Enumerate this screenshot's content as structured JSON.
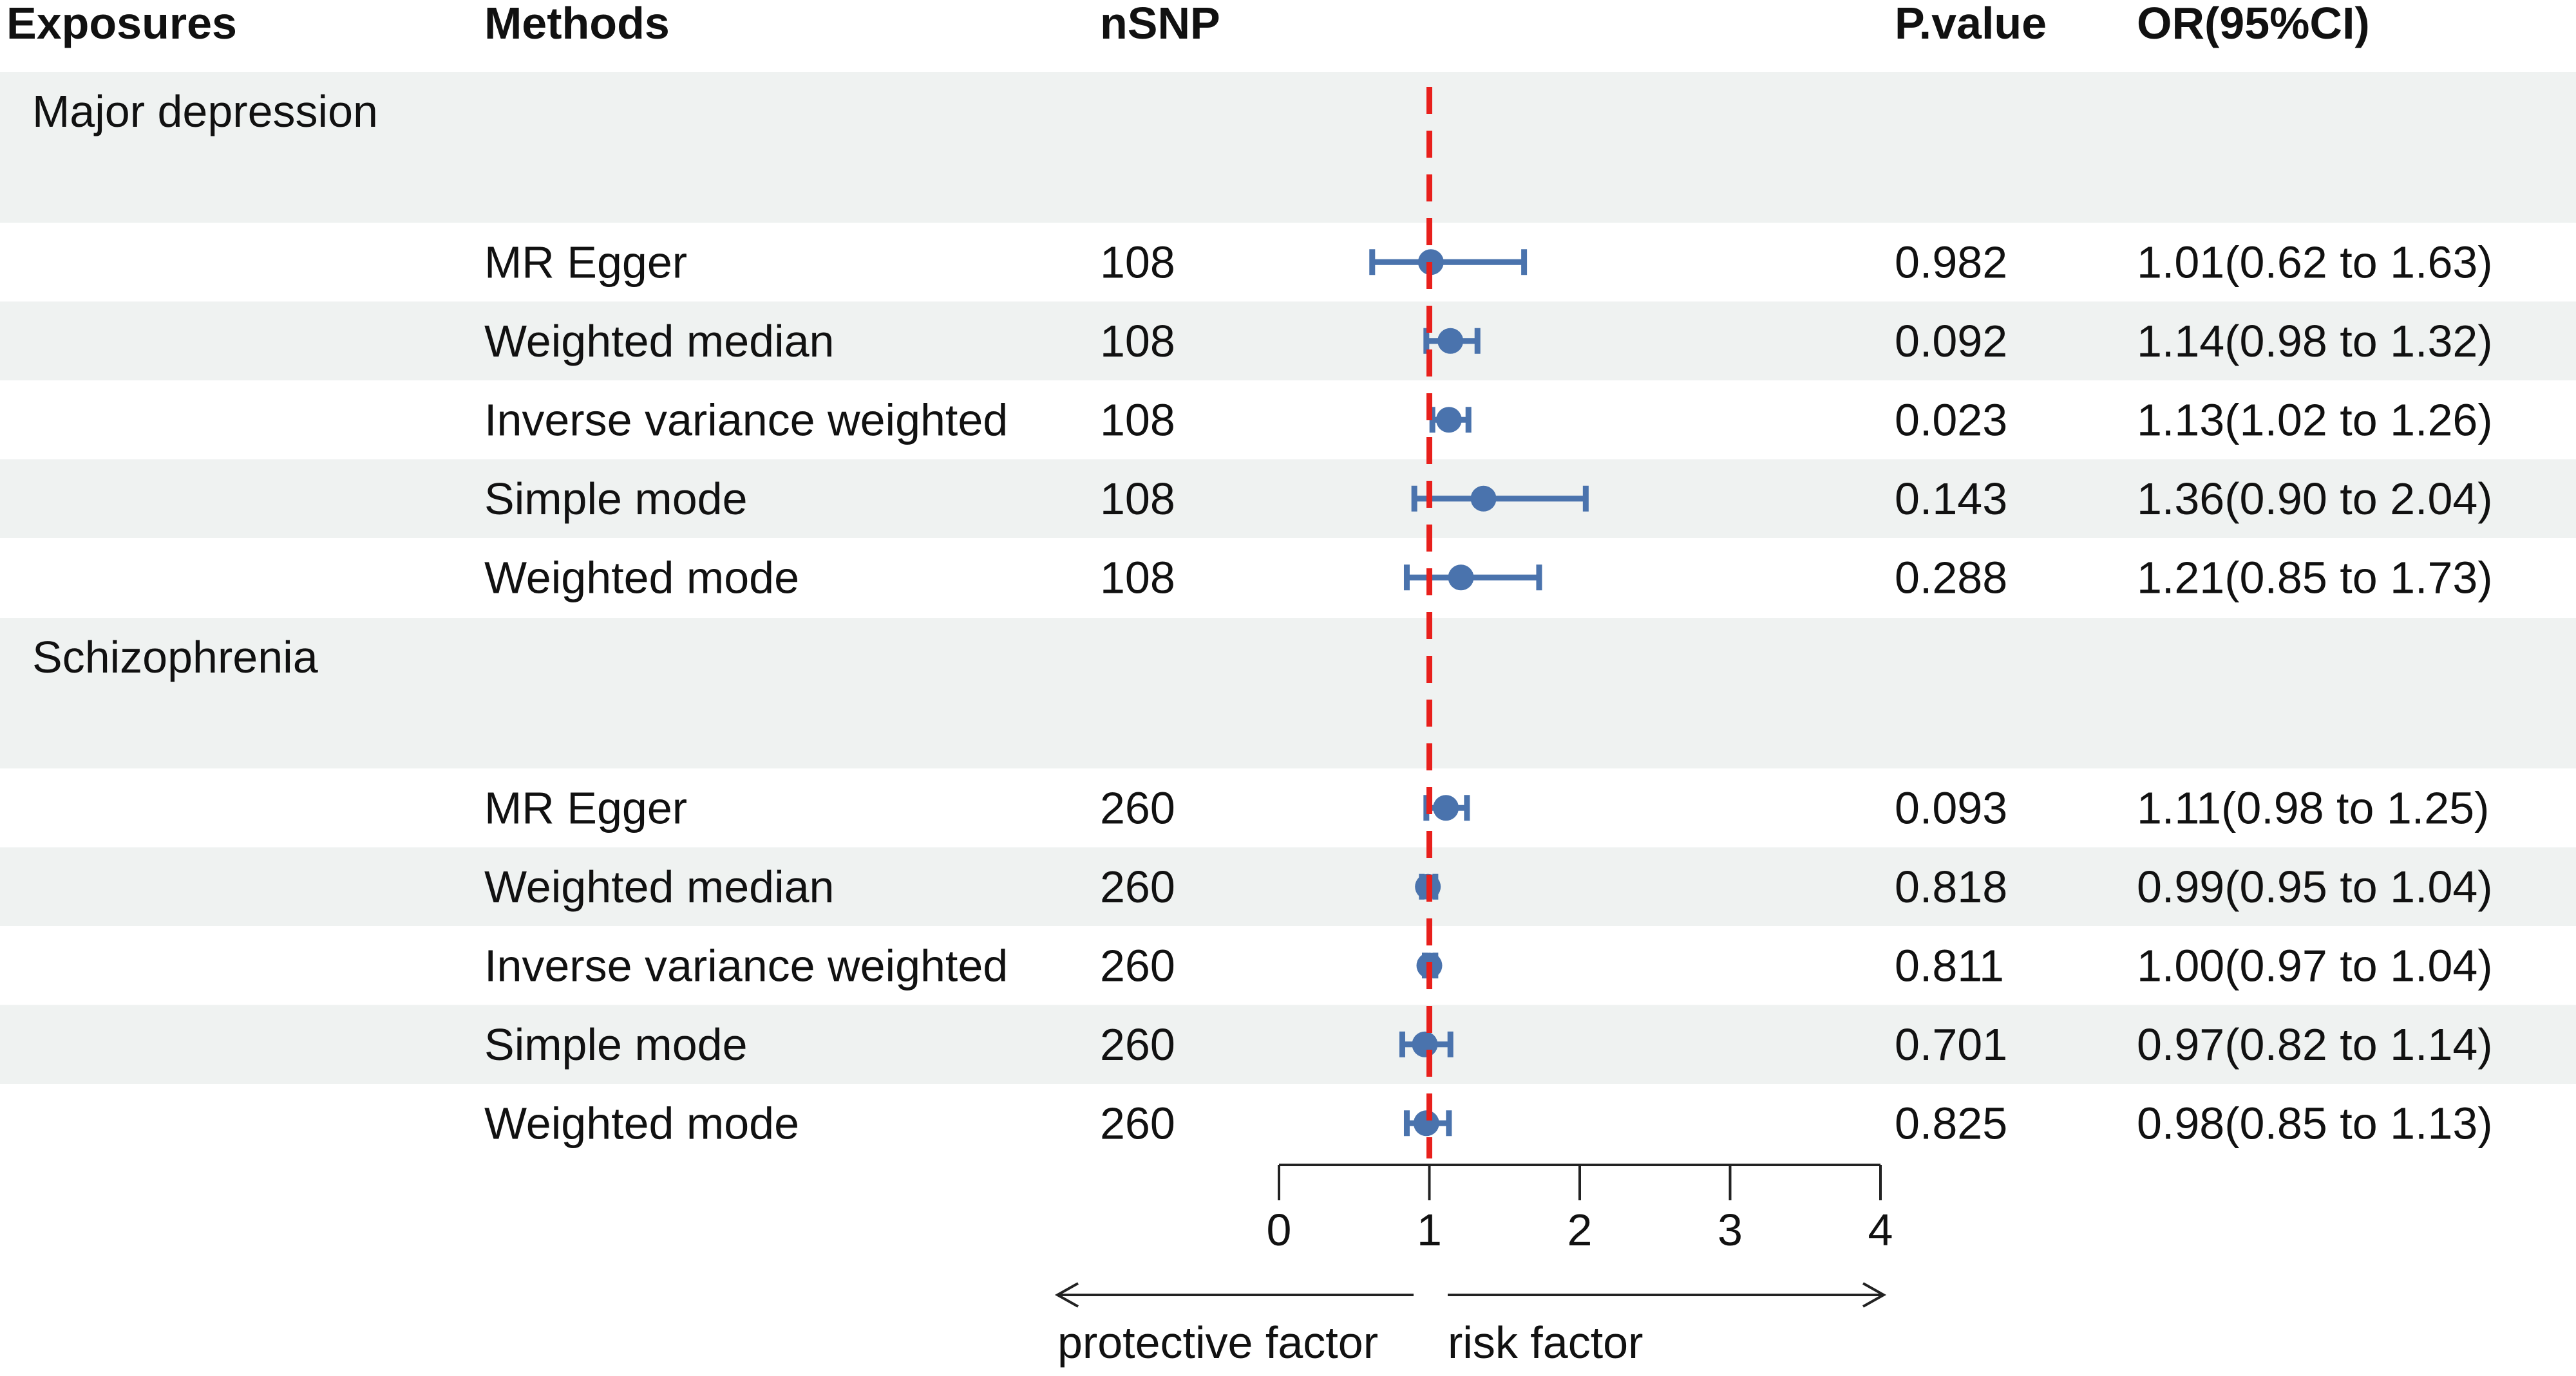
{
  "chart_data": {
    "type": "forest",
    "columns": {
      "exposures": "Exposures",
      "methods": "Methods",
      "nsnp": "nSNP",
      "pvalue": "P.value",
      "or": "OR(95%CI)"
    },
    "groups": [
      {
        "exposure": "Major depression",
        "rows": [
          {
            "method": "MR Egger",
            "nsnp": "108",
            "pvalue": "0.982",
            "or_text": "1.01(0.62 to 1.63)",
            "or": 1.01,
            "lo": 0.62,
            "hi": 1.63
          },
          {
            "method": "Weighted median",
            "nsnp": "108",
            "pvalue": "0.092",
            "or_text": "1.14(0.98 to 1.32)",
            "or": 1.14,
            "lo": 0.98,
            "hi": 1.32
          },
          {
            "method": "Inverse variance weighted",
            "nsnp": "108",
            "pvalue": "0.023",
            "or_text": "1.13(1.02 to 1.26)",
            "or": 1.13,
            "lo": 1.02,
            "hi": 1.26
          },
          {
            "method": "Simple mode",
            "nsnp": "108",
            "pvalue": "0.143",
            "or_text": "1.36(0.90 to 2.04)",
            "or": 1.36,
            "lo": 0.9,
            "hi": 2.04
          },
          {
            "method": "Weighted mode",
            "nsnp": "108",
            "pvalue": "0.288",
            "or_text": "1.21(0.85 to 1.73)",
            "or": 1.21,
            "lo": 0.85,
            "hi": 1.73
          }
        ]
      },
      {
        "exposure": "Schizophrenia",
        "rows": [
          {
            "method": "MR Egger",
            "nsnp": "260",
            "pvalue": "0.093",
            "or_text": "1.11(0.98 to 1.25)",
            "or": 1.11,
            "lo": 0.98,
            "hi": 1.25
          },
          {
            "method": "Weighted median",
            "nsnp": "260",
            "pvalue": "0.818",
            "or_text": "0.99(0.95 to 1.04)",
            "or": 0.99,
            "lo": 0.95,
            "hi": 1.04
          },
          {
            "method": "Inverse variance weighted",
            "nsnp": "260",
            "pvalue": "0.811",
            "or_text": "1.00(0.97 to 1.04)",
            "or": 1.0,
            "lo": 0.97,
            "hi": 1.04
          },
          {
            "method": "Simple mode",
            "nsnp": "260",
            "pvalue": "0.701",
            "or_text": "0.97(0.82 to 1.14)",
            "or": 0.97,
            "lo": 0.82,
            "hi": 1.14
          },
          {
            "method": "Weighted mode",
            "nsnp": "260",
            "pvalue": "0.825",
            "or_text": "0.98(0.85 to 1.13)",
            "or": 0.98,
            "lo": 0.85,
            "hi": 1.13
          }
        ]
      }
    ],
    "xaxis": {
      "range": [
        0,
        4
      ],
      "ticks": [
        "0",
        "1",
        "2",
        "3",
        "4"
      ],
      "reference": 1
    },
    "annotations": {
      "left": "protective factor",
      "right": "risk factor"
    },
    "colors": {
      "point": "#4A73AD",
      "reference": "#E8201C",
      "band": "#EFF2F1",
      "text": "#111111",
      "axis": "#222222"
    }
  }
}
